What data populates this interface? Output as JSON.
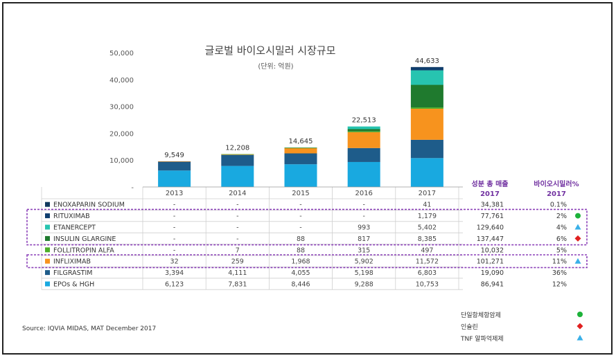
{
  "chart_data": {
    "type": "bar",
    "stacked": true,
    "title": "글로벌 바이오시밀러 시장규모",
    "subtitle": "(단위: 억원)",
    "categories": [
      "2013",
      "2014",
      "2015",
      "2016",
      "2017"
    ],
    "totals": [
      "9,549",
      "12,208",
      "14,645",
      "22,513",
      "44,633"
    ],
    "ylim": [
      0,
      50000
    ],
    "yticks": [
      "-",
      "10,000",
      "20,000",
      "30,000",
      "40,000",
      "50,000"
    ],
    "ytick_values": [
      0,
      10000,
      20000,
      30000,
      40000,
      50000
    ],
    "series": [
      {
        "name": "EPOs & HGH",
        "color": "#19a9e0",
        "values": [
          6123,
          7831,
          8446,
          9288,
          10753
        ],
        "labels": [
          "6,123",
          "7,831",
          "8,446",
          "9,288",
          "10,753"
        ],
        "total_sales": "86,941",
        "pct": "12%",
        "marker": ""
      },
      {
        "name": "FILGRASTIM",
        "color": "#1e5c8a",
        "values": [
          3394,
          4111,
          4055,
          5198,
          6803
        ],
        "labels": [
          "3,394",
          "4,111",
          "4,055",
          "5,198",
          "6,803"
        ],
        "total_sales": "19,090",
        "pct": "36%",
        "marker": ""
      },
      {
        "name": "INFLIXIMAB",
        "color": "#f7931e",
        "values": [
          32,
          259,
          1968,
          5902,
          11572
        ],
        "labels": [
          "32",
          "259",
          "1,968",
          "5,902",
          "11,572"
        ],
        "total_sales": "101,271",
        "pct": "11%",
        "marker": "triangle"
      },
      {
        "name": "FOLLITROPIN ALFA",
        "color": "#4cae2a",
        "values": [
          0,
          7,
          88,
          315,
          497
        ],
        "labels": [
          "-",
          "7",
          "88",
          "315",
          "497"
        ],
        "total_sales": "10,032",
        "pct": "5%",
        "marker": ""
      },
      {
        "name": "INSULIN GLARGINE",
        "color": "#1f7a2e",
        "values": [
          0,
          0,
          88,
          817,
          8385
        ],
        "labels": [
          "-",
          "-",
          "88",
          "817",
          "8,385"
        ],
        "total_sales": "137,447",
        "pct": "6%",
        "marker": "diamond"
      },
      {
        "name": "ETANERCEPT",
        "color": "#27c4b0",
        "values": [
          0,
          0,
          0,
          993,
          5402
        ],
        "labels": [
          "-",
          "-",
          "-",
          "993",
          "5,402"
        ],
        "total_sales": "129,640",
        "pct": "4%",
        "marker": "triangle"
      },
      {
        "name": "RITUXIMAB",
        "color": "#0f3e6e",
        "values": [
          0,
          0,
          0,
          0,
          1179
        ],
        "labels": [
          "-",
          "-",
          "-",
          "-",
          "1,179"
        ],
        "total_sales": "77,761",
        "pct": "2%",
        "marker": "circle"
      },
      {
        "name": "ENOXAPARIN SODIUM",
        "color": "#123a5e",
        "values": [
          0,
          0,
          0,
          0,
          41
        ],
        "labels": [
          "-",
          "-",
          "-",
          "-",
          "41"
        ],
        "total_sales": "34,381",
        "pct": "0.1%",
        "marker": ""
      }
    ],
    "extra_columns": {
      "col1_line1": "성분 총 매출",
      "col1_line2": "2017",
      "col2_line1": "바이오시밀러%",
      "col2_line2": "2017"
    },
    "legend_markers": [
      {
        "label": "단일항체항암제",
        "marker": "circle",
        "color": "#1db23a"
      },
      {
        "label": "인슐린",
        "marker": "diamond",
        "color": "#e02020"
      },
      {
        "label": "TNF 알파억제제",
        "marker": "triangle",
        "color": "#3ab0e8"
      }
    ],
    "source": "Source: IQVIA MIDAS, MAT December  2017"
  },
  "colors": {
    "header_text": "#7030a0",
    "dashed_box": "#8a3fb8",
    "marker_circle": "#1db23a",
    "marker_diamond": "#e02020",
    "marker_triangle": "#3ab0e8"
  }
}
